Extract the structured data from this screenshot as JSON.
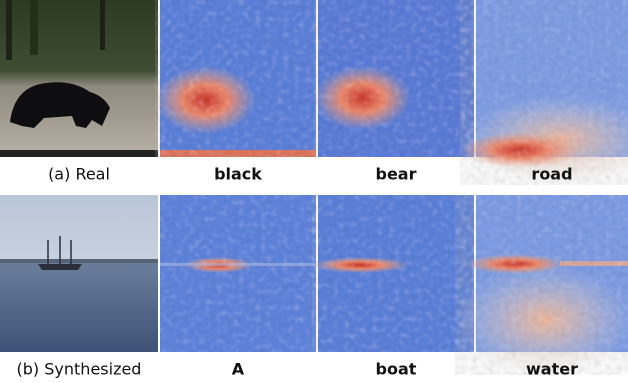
{
  "rows": [
    {
      "caption": "(a) Real",
      "words": [
        "black",
        "bear",
        "road"
      ]
    },
    {
      "caption": "(b) Synthesized",
      "words": [
        "A",
        "boat",
        "water"
      ]
    }
  ]
}
